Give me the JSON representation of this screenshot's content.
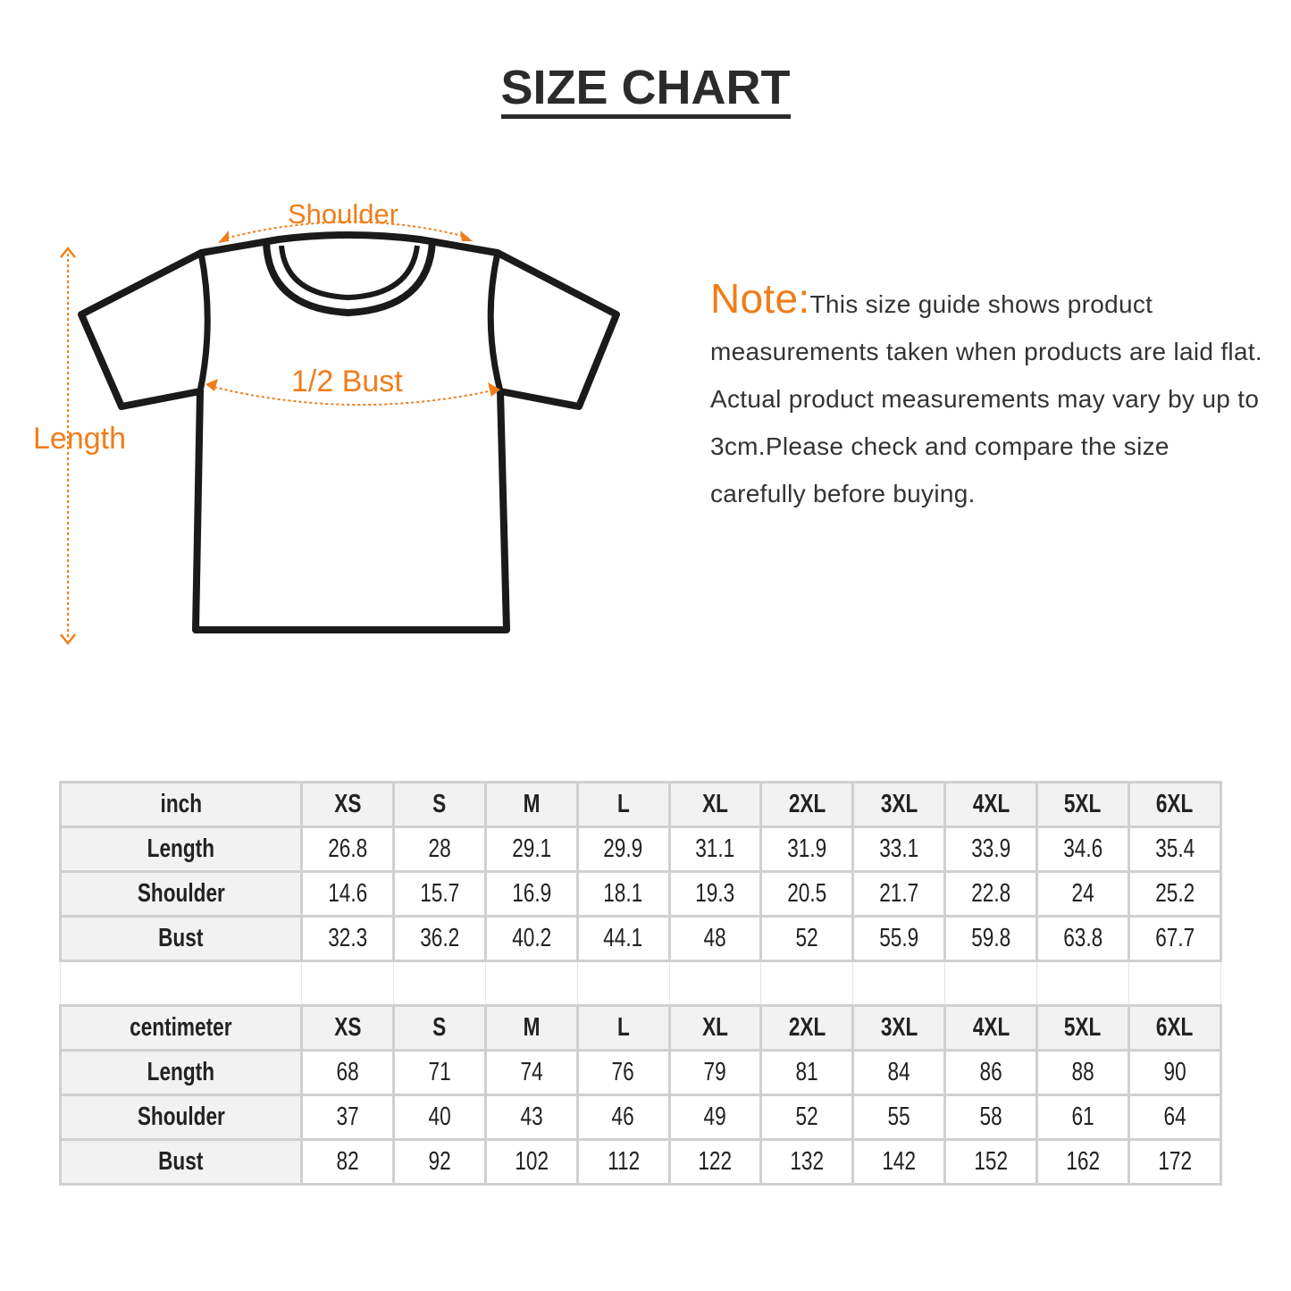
{
  "title": "SIZE CHART",
  "diagram": {
    "shoulder": "Shoulder",
    "bust": "1/2 Bust",
    "length": "Length",
    "accent": "#f07d1a"
  },
  "note": {
    "label": "Note:",
    "text": "This size guide shows product measurements taken when products are laid flat. Actual product measurements may vary by up to 3cm.Please check and compare the size carefully before buying."
  },
  "sizes": [
    "XS",
    "S",
    "M",
    "L",
    "XL",
    "2XL",
    "3XL",
    "4XL",
    "5XL",
    "6XL"
  ],
  "tables": [
    {
      "unit": "inch",
      "rows": [
        {
          "label": "Length",
          "values": [
            "26.8",
            "28",
            "29.1",
            "29.9",
            "31.1",
            "31.9",
            "33.1",
            "33.9",
            "34.6",
            "35.4"
          ]
        },
        {
          "label": "Shoulder",
          "values": [
            "14.6",
            "15.7",
            "16.9",
            "18.1",
            "19.3",
            "20.5",
            "21.7",
            "22.8",
            "24",
            "25.2"
          ]
        },
        {
          "label": "Bust",
          "values": [
            "32.3",
            "36.2",
            "40.2",
            "44.1",
            "48",
            "52",
            "55.9",
            "59.8",
            "63.8",
            "67.7"
          ]
        }
      ]
    },
    {
      "unit": "centimeter",
      "rows": [
        {
          "label": "Length",
          "values": [
            "68",
            "71",
            "74",
            "76",
            "79",
            "81",
            "84",
            "86",
            "88",
            "90"
          ]
        },
        {
          "label": "Shoulder",
          "values": [
            "37",
            "40",
            "43",
            "46",
            "49",
            "52",
            "55",
            "58",
            "61",
            "64"
          ]
        },
        {
          "label": "Bust",
          "values": [
            "82",
            "92",
            "102",
            "112",
            "122",
            "132",
            "142",
            "152",
            "162",
            "172"
          ]
        }
      ]
    }
  ]
}
